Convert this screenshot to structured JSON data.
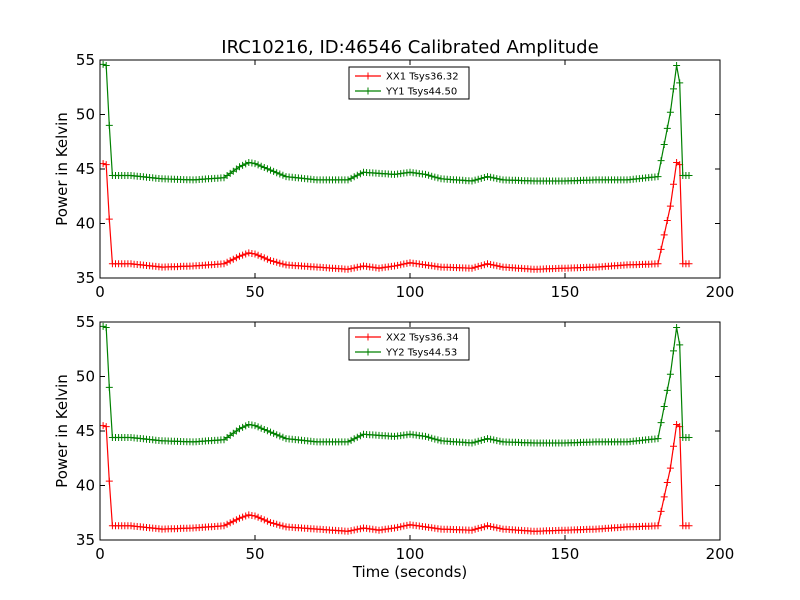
{
  "title": "IRC10216, ID:46546 Calibrated Amplitude",
  "colors": {
    "xx": "#ff0000",
    "yy": "#008000"
  },
  "chart_data": [
    {
      "type": "line",
      "xlim": [
        0,
        200
      ],
      "ylim": [
        35,
        55
      ],
      "xticks": [
        "0",
        "50",
        "100",
        "150",
        "200"
      ],
      "yticks": [
        "35",
        "40",
        "45",
        "50",
        "55"
      ],
      "xlabel": "",
      "ylabel": "Power in Kelvin",
      "legend_placement": "top-center",
      "grid": false,
      "series": [
        {
          "name": "XX1 Tsys36.32",
          "color": "#ff0000",
          "x": [
            1,
            2,
            3,
            4,
            10,
            20,
            30,
            40,
            45,
            48,
            50,
            55,
            60,
            70,
            80,
            85,
            90,
            95,
            100,
            105,
            110,
            120,
            125,
            130,
            140,
            150,
            160,
            170,
            180,
            184,
            186,
            187,
            188,
            190
          ],
          "y": [
            45.5,
            45.4,
            40.4,
            36.3,
            36.3,
            36.0,
            36.1,
            36.3,
            37.0,
            37.3,
            37.2,
            36.6,
            36.2,
            36.0,
            35.8,
            36.1,
            35.9,
            36.1,
            36.4,
            36.2,
            36.0,
            35.9,
            36.3,
            36.0,
            35.8,
            35.9,
            36.0,
            36.2,
            36.3,
            41.6,
            45.6,
            45.4,
            36.3,
            36.3
          ]
        },
        {
          "name": "YY1 Tsys44.50",
          "color": "#008000",
          "x": [
            1,
            2,
            3,
            4,
            10,
            20,
            30,
            40,
            45,
            48,
            50,
            55,
            60,
            70,
            80,
            85,
            90,
            95,
            100,
            105,
            110,
            120,
            125,
            130,
            140,
            150,
            160,
            170,
            180,
            184,
            186,
            187,
            188,
            190
          ],
          "y": [
            54.6,
            54.5,
            49.0,
            44.4,
            44.4,
            44.1,
            44.0,
            44.2,
            45.2,
            45.6,
            45.5,
            44.9,
            44.3,
            44.0,
            44.0,
            44.7,
            44.6,
            44.5,
            44.7,
            44.5,
            44.1,
            43.9,
            44.3,
            44.0,
            43.9,
            43.9,
            44.0,
            44.0,
            44.3,
            50.2,
            54.5,
            52.9,
            44.4,
            44.4
          ]
        }
      ]
    },
    {
      "type": "line",
      "xlim": [
        0,
        200
      ],
      "ylim": [
        35,
        55
      ],
      "xticks": [
        "0",
        "50",
        "100",
        "150",
        "200"
      ],
      "yticks": [
        "35",
        "40",
        "45",
        "50",
        "55"
      ],
      "xlabel": "Time (seconds)",
      "ylabel": "Power in Kelvin",
      "legend_placement": "top-center",
      "grid": false,
      "series": [
        {
          "name": "XX2 Tsys36.34",
          "color": "#ff0000",
          "x": [
            1,
            2,
            3,
            4,
            10,
            20,
            30,
            40,
            45,
            48,
            50,
            55,
            60,
            70,
            80,
            85,
            90,
            95,
            100,
            105,
            110,
            120,
            125,
            130,
            140,
            150,
            160,
            170,
            180,
            184,
            186,
            187,
            188,
            190
          ],
          "y": [
            45.5,
            45.4,
            40.4,
            36.3,
            36.3,
            36.0,
            36.1,
            36.3,
            37.0,
            37.3,
            37.2,
            36.6,
            36.2,
            36.0,
            35.8,
            36.1,
            35.9,
            36.1,
            36.4,
            36.2,
            36.0,
            35.9,
            36.3,
            36.0,
            35.8,
            35.9,
            36.0,
            36.2,
            36.3,
            41.6,
            45.6,
            45.4,
            36.3,
            36.3
          ]
        },
        {
          "name": "YY2 Tsys44.53",
          "color": "#008000",
          "x": [
            1,
            2,
            3,
            4,
            10,
            20,
            30,
            40,
            45,
            48,
            50,
            55,
            60,
            70,
            80,
            85,
            90,
            95,
            100,
            105,
            110,
            120,
            125,
            130,
            140,
            150,
            160,
            170,
            180,
            184,
            186,
            187,
            188,
            190
          ],
          "y": [
            54.6,
            54.5,
            49.0,
            44.4,
            44.4,
            44.1,
            44.0,
            44.2,
            45.2,
            45.6,
            45.5,
            44.9,
            44.3,
            44.0,
            44.0,
            44.7,
            44.6,
            44.5,
            44.7,
            44.5,
            44.1,
            43.9,
            44.3,
            44.0,
            43.9,
            43.9,
            44.0,
            44.0,
            44.3,
            50.2,
            54.5,
            52.9,
            44.4,
            44.4
          ]
        }
      ]
    }
  ]
}
